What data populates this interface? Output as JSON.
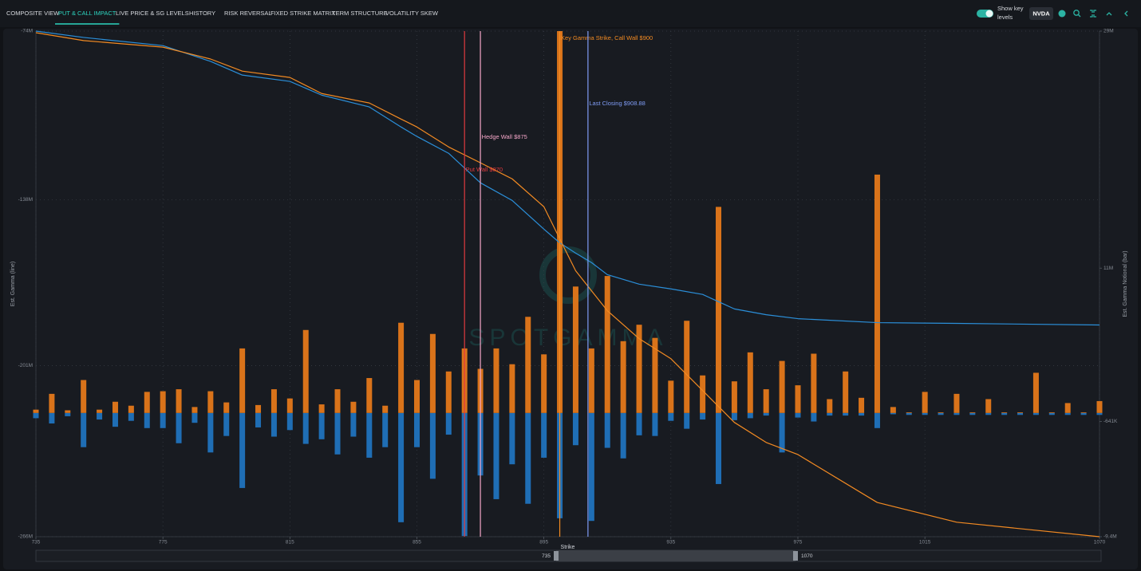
{
  "nav": {
    "tabs": [
      "COMPOSITE VIEW",
      "PUT & CALL IMPACT",
      "LIVE PRICE & SG LEVELS",
      "HISTORY",
      "RISK REVERSAL",
      "FIXED STRIKE MATRIX",
      "TERM STRUCTURE",
      "VOLATILITY SKEW"
    ],
    "active": 1
  },
  "controls": {
    "toggle_label": "Show key levels",
    "ticker": "NVDA"
  },
  "watermark": "SPOTGAMMA",
  "chart_data": {
    "type": "bar_line",
    "xlabel": "Strike",
    "ylabel": "Est. Gamma (line)",
    "y2label": "Est. Gamma Notional (bar)",
    "xlim": [
      735,
      1070
    ],
    "xticks": [
      735,
      775,
      815,
      855,
      895,
      935,
      975,
      1015,
      1070
    ],
    "ylim": [
      -266,
      -74
    ],
    "yticks": [
      {
        "value": -74,
        "label": "-74M"
      },
      {
        "value": -138,
        "label": "-138M"
      },
      {
        "value": -201,
        "label": "-201M"
      },
      {
        "value": -266,
        "label": "-266M"
      }
    ],
    "y2lim": [
      -9.4,
      29
    ],
    "y2ticks": [
      {
        "value": 29,
        "label": "29M"
      },
      {
        "value": 11,
        "label": "11M"
      },
      {
        "value": -0.641,
        "label": "-641K"
      },
      {
        "value": -9.4,
        "label": "-9.4M"
      }
    ],
    "grid": true,
    "x": [
      735,
      740,
      745,
      750,
      755,
      760,
      765,
      770,
      775,
      780,
      785,
      790,
      795,
      800,
      805,
      810,
      815,
      820,
      825,
      830,
      835,
      840,
      845,
      850,
      855,
      860,
      865,
      870,
      875,
      880,
      885,
      890,
      895,
      900,
      905,
      910,
      915,
      920,
      925,
      930,
      935,
      940,
      945,
      950,
      955,
      960,
      965,
      970,
      975,
      980,
      985,
      990,
      995,
      1000,
      1005,
      1010,
      1015,
      1020,
      1025,
      1030,
      1035,
      1040,
      1045,
      1050,
      1055,
      1060,
      1065,
      1070
    ],
    "series": [
      {
        "type": "bar",
        "axis": "y2",
        "color": "#1f6eb5",
        "values": [
          -0.4,
          -0.8,
          -0.25,
          -2.6,
          -0.5,
          -1.05,
          -0.6,
          -1.15,
          -1.15,
          -2.3,
          -0.75,
          -3.0,
          -1.75,
          -5.7,
          -1.1,
          -1.8,
          -1.3,
          -2.35,
          -2.0,
          -3.15,
          -1.8,
          -3.4,
          -2.6,
          -8.3,
          -2.6,
          -5.0,
          -1.65,
          -9.35,
          -4.75,
          -6.55,
          -3.9,
          -6.9,
          -3.4,
          -8.0,
          -2.45,
          -8.2,
          -2.65,
          -3.45,
          -1.7,
          -1.75,
          -0.6,
          -1.2,
          -0.5,
          -5.4,
          -0.55,
          -0.4,
          -0.2,
          -3.0,
          -0.35,
          -0.65,
          -0.2,
          -0.2,
          -0.2,
          -1.15,
          -0.1,
          -0.15,
          -0.15,
          -0.15,
          -0.15,
          -0.15,
          -0.15,
          -0.15,
          -0.15,
          -0.15,
          -0.15,
          -0.15,
          -0.15,
          -0.15
        ]
      },
      {
        "type": "bar",
        "axis": "y2",
        "color": "#d9731a",
        "values": [
          0.25,
          1.45,
          0.2,
          2.5,
          0.25,
          0.85,
          0.55,
          1.6,
          1.65,
          1.8,
          0.45,
          1.65,
          0.8,
          4.9,
          0.6,
          1.8,
          1.1,
          6.3,
          0.65,
          1.8,
          0.85,
          2.65,
          0.55,
          6.85,
          2.5,
          6.0,
          3.15,
          4.9,
          3.35,
          4.9,
          3.7,
          7.3,
          4.45,
          29,
          9.6,
          4.9,
          10.4,
          5.45,
          6.7,
          5.7,
          2.45,
          7.0,
          2.85,
          15.65,
          2.4,
          4.6,
          1.8,
          3.95,
          2.1,
          4.5,
          1.05,
          3.15,
          1.15,
          18.1,
          0.45,
          0.05,
          1.6,
          0.05,
          1.45,
          0.05,
          1.05,
          0.05,
          0.05,
          3.05,
          0.05,
          0.75,
          0.05,
          0.9
        ]
      },
      {
        "type": "line",
        "color": "#2b8fd9",
        "x": [
          735,
          750,
          775,
          790,
          800,
          815,
          825,
          840,
          850,
          855,
          865,
          875,
          885,
          895,
          900,
          905,
          910,
          915,
          925,
          935,
          945,
          955,
          965,
          975,
          1000,
          1025,
          1070
        ],
        "values": [
          -74,
          -76.4,
          -79.5,
          -85.5,
          -90.7,
          -93.1,
          -98.3,
          -102.8,
          -110.4,
          -114.0,
          -120.4,
          -131.6,
          -138.3,
          -149.2,
          -154.4,
          -158.3,
          -161.9,
          -166.5,
          -170.1,
          -171.9,
          -174.0,
          -179.5,
          -181.7,
          -183.2,
          -184.7,
          -185.0,
          -185.6
        ]
      },
      {
        "type": "line",
        "color": "#f28a22",
        "x": [
          735,
          750,
          775,
          790,
          800,
          815,
          825,
          840,
          850,
          855,
          865,
          875,
          885,
          895,
          900,
          905,
          910,
          915,
          925,
          935,
          945,
          955,
          965,
          975,
          1000,
          1025,
          1070
        ],
        "values": [
          -74.6,
          -77.6,
          -80.1,
          -84.6,
          -89.2,
          -91.6,
          -97.7,
          -101.3,
          -107.4,
          -110.4,
          -118.0,
          -124.0,
          -130.1,
          -140.7,
          -152.9,
          -165.0,
          -172.6,
          -180.2,
          -190.8,
          -198.4,
          -210.5,
          -222.6,
          -230.2,
          -234.8,
          -253.0,
          -260.5,
          -266.0
        ]
      }
    ],
    "annotations": [
      {
        "label": "Put Wall $870",
        "x": 870,
        "color": "#e0393e"
      },
      {
        "label": "Hedge Wall $875",
        "x": 875,
        "color": "#f4a6c8"
      },
      {
        "label": "Key Gamma Strike, Call Wall $900",
        "x": 900,
        "color": "#f28a22"
      },
      {
        "label": "Last Closing $908.88",
        "x": 908.88,
        "color": "#7f9cf5"
      }
    ]
  },
  "range_slider": {
    "min": 735,
    "max": 1070
  }
}
